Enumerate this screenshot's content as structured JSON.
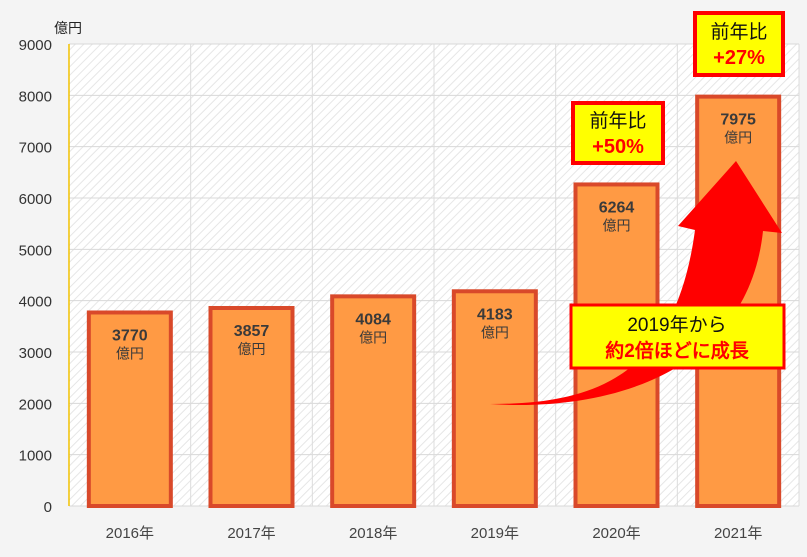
{
  "chart_data": {
    "type": "bar",
    "unit_label": "億円",
    "value_unit": "億円",
    "categories": [
      "2016年",
      "2017年",
      "2018年",
      "2019年",
      "2020年",
      "2021年"
    ],
    "values": [
      3770,
      3857,
      4084,
      4183,
      6264,
      7975
    ],
    "ylim": [
      0,
      9000
    ],
    "yticks": [
      "0",
      "1000",
      "2000",
      "3000",
      "4000",
      "5000",
      "6000",
      "7000",
      "8000",
      "9000"
    ],
    "grid": true,
    "colors": {
      "bar_fill": "#ff9a44",
      "bar_stroke": "#d9492a",
      "callout_bg": "#ffff00",
      "callout_border": "#ff0000",
      "arrow": "#ff0000",
      "highlight_text": "#ff0000"
    },
    "annotations": {
      "yoy_2020": {
        "line1": "前年比",
        "line2": "+50%"
      },
      "yoy_2021": {
        "line1": "前年比",
        "line2": "+27%"
      },
      "growth": {
        "line1": "2019年から",
        "line2": "約2倍ほどに成長"
      }
    }
  }
}
